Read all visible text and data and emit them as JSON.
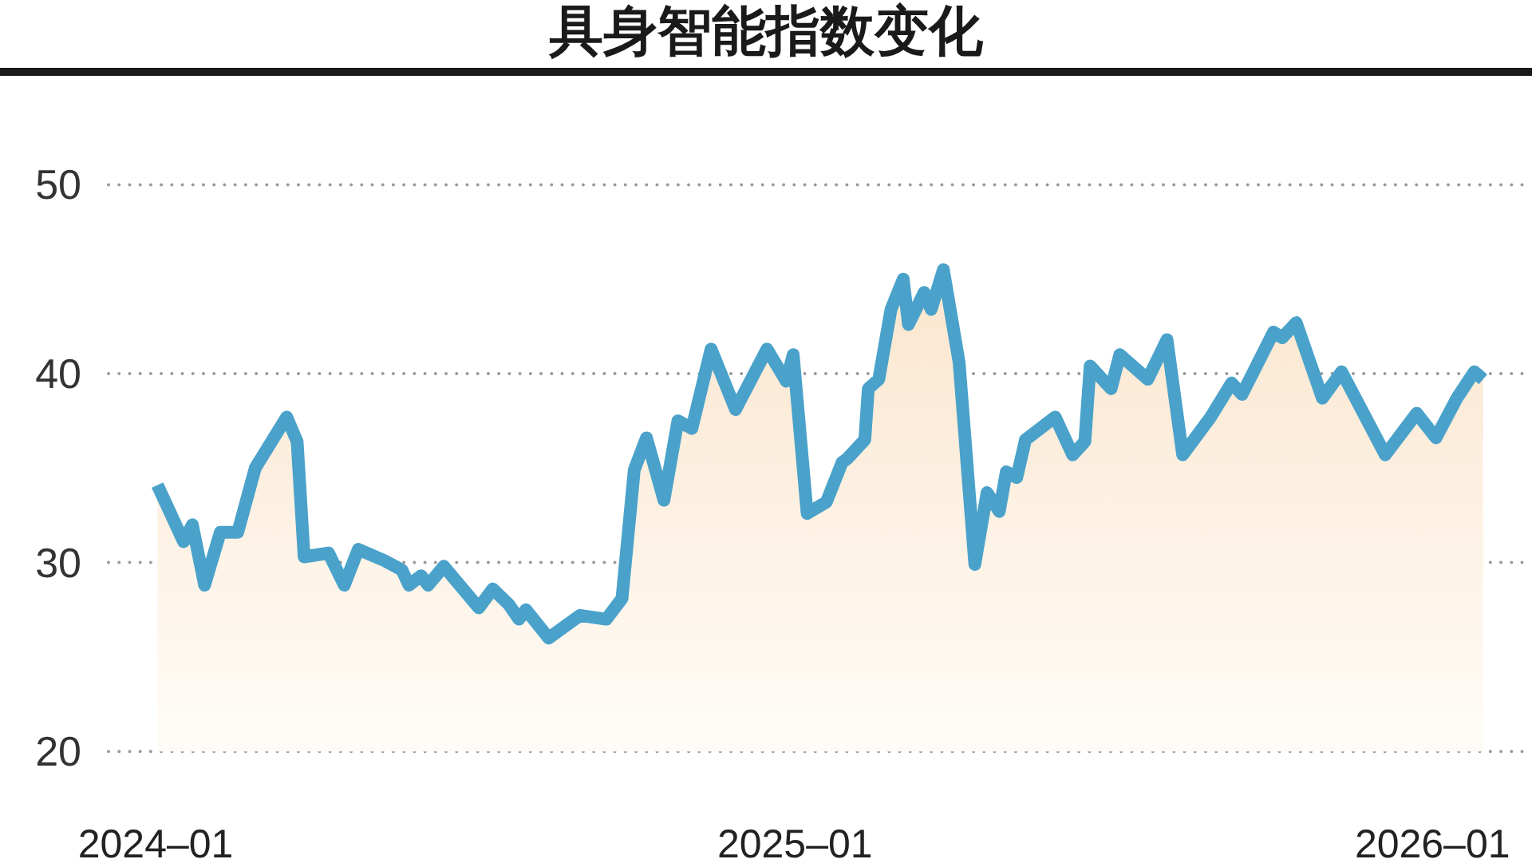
{
  "chart_data": {
    "type": "area",
    "title": "具身智能指数变化",
    "x": [
      "2024-01-02",
      "2024-01-17",
      "2024-01-22",
      "2024-01-29",
      "2024-02-07",
      "2024-02-17",
      "2024-02-27",
      "2024-03-16",
      "2024-03-22",
      "2024-03-26",
      "2024-04-09",
      "2024-04-18",
      "2024-04-26",
      "2024-05-11",
      "2024-05-21",
      "2024-05-25",
      "2024-06-01",
      "2024-06-05",
      "2024-06-14",
      "2024-07-04",
      "2024-07-12",
      "2024-07-21",
      "2024-07-27",
      "2024-07-31",
      "2024-08-13",
      "2024-08-31",
      "2024-09-15",
      "2024-09-24",
      "2024-10-01",
      "2024-10-08",
      "2024-10-18",
      "2024-10-26",
      "2024-11-03",
      "2024-11-14",
      "2024-11-28",
      "2024-12-16",
      "2024-12-27",
      "2024-12-31",
      "2025-01-08",
      "2025-01-19",
      "2025-01-28",
      "2025-01-31",
      "2025-02-10",
      "2025-02-12",
      "2025-02-18",
      "2025-02-25",
      "2025-03-04",
      "2025-03-07",
      "2025-03-16",
      "2025-03-20",
      "2025-03-27",
      "2025-04-05",
      "2025-04-14",
      "2025-04-21",
      "2025-04-28",
      "2025-05-02",
      "2025-05-08",
      "2025-05-13",
      "2025-05-30",
      "2025-06-09",
      "2025-06-16",
      "2025-06-19",
      "2025-07-01",
      "2025-07-06",
      "2025-07-22",
      "2025-08-02",
      "2025-08-11",
      "2025-08-27",
      "2025-09-08",
      "2025-09-14",
      "2025-10-02",
      "2025-10-07",
      "2025-10-15",
      "2025-10-30",
      "2025-11-10",
      "2025-12-05",
      "2025-12-23",
      "2026-01-03",
      "2026-01-15",
      "2026-01-25",
      "2026-01-30"
    ],
    "values": [
      34.1,
      31.1,
      32.0,
      28.8,
      31.6,
      31.6,
      35.0,
      37.7,
      36.4,
      30.3,
      30.5,
      28.8,
      30.7,
      30.1,
      29.6,
      28.8,
      29.3,
      28.8,
      29.8,
      27.6,
      28.6,
      27.8,
      27.0,
      27.5,
      26.0,
      27.2,
      27.0,
      28.1,
      34.9,
      36.6,
      33.3,
      37.5,
      37.1,
      41.3,
      38.1,
      41.3,
      39.6,
      41.0,
      32.6,
      33.2,
      35.3,
      35.5,
      36.5,
      39.2,
      39.7,
      43.4,
      45.0,
      42.6,
      44.3,
      43.4,
      45.5,
      40.6,
      29.9,
      33.7,
      32.7,
      34.8,
      34.5,
      36.5,
      37.7,
      35.7,
      36.4,
      40.4,
      39.2,
      41.0,
      39.7,
      41.8,
      35.7,
      37.7,
      39.5,
      38.9,
      42.2,
      41.9,
      42.7,
      38.7,
      40.1,
      35.7,
      37.9,
      36.6,
      38.7,
      40.1,
      39.7
    ],
    "color": "#4aa2ca",
    "xlim": [
      "2023-12-05",
      "2026-02-27"
    ],
    "xticks": [
      {
        "value": "2024-01-01",
        "label": "2024–01"
      },
      {
        "value": "2025-01-01",
        "label": "2025–01"
      },
      {
        "value": "2026-01-01",
        "label": "2026–01"
      }
    ],
    "ylim": [
      20,
      50
    ],
    "yticks": [
      20,
      30,
      40,
      50
    ],
    "grid": "y"
  }
}
